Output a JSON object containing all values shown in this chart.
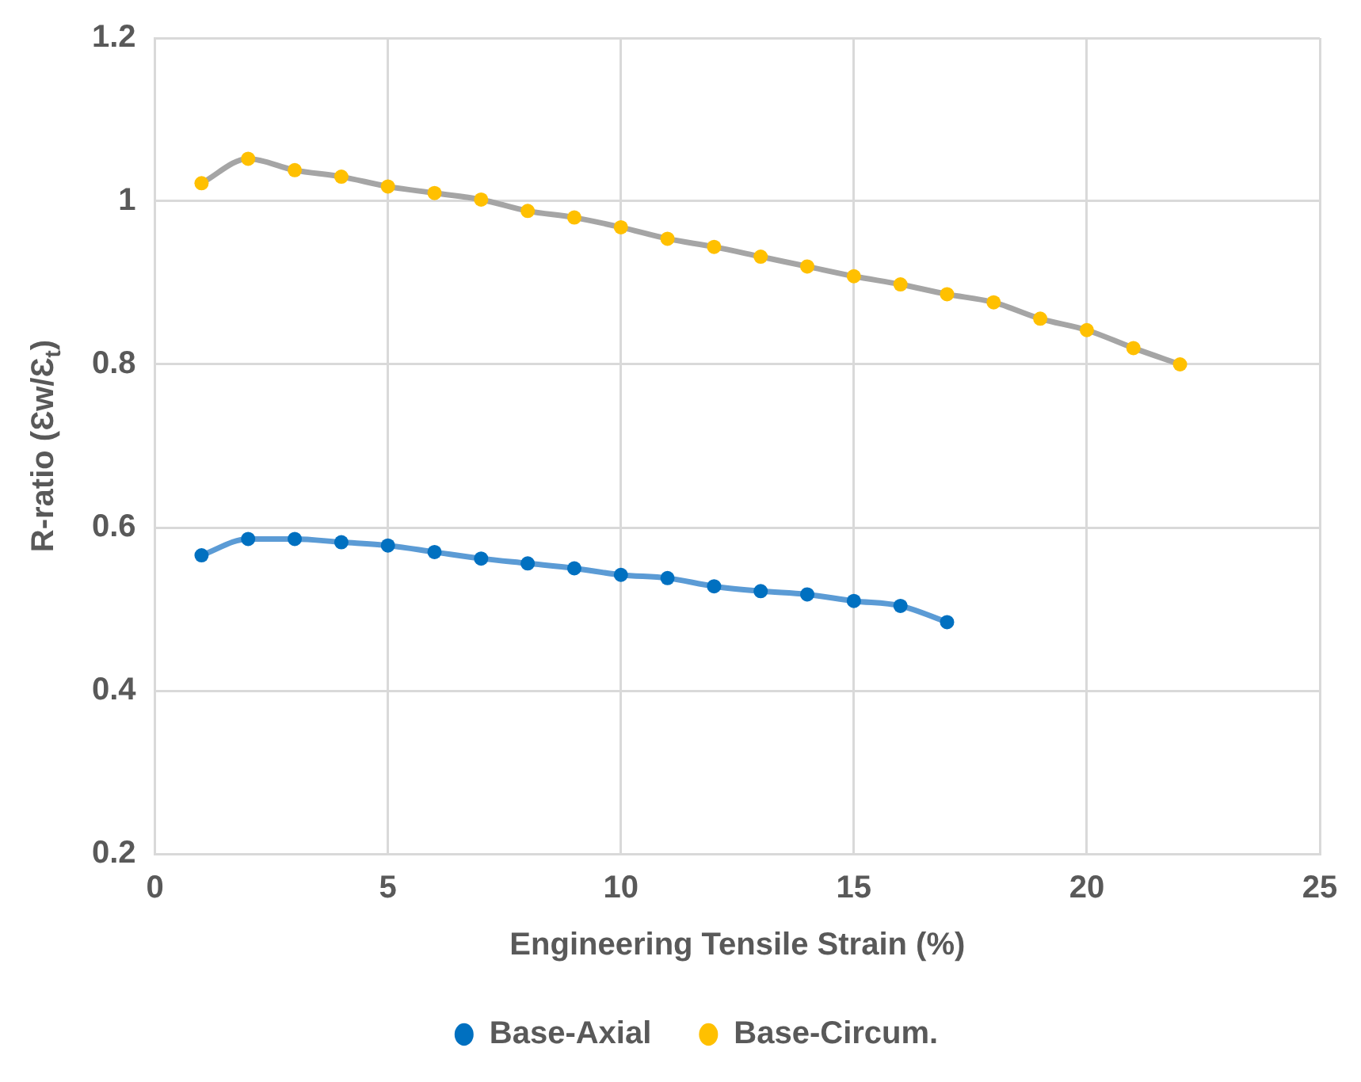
{
  "chart_data": {
    "type": "line",
    "xlabel": "Engineering Tensile Strain (%)",
    "ylabel": "R-ratio (Ɛw/Ɛ$_{t}$)",
    "xlim": [
      0,
      25
    ],
    "xticks": [
      0,
      5,
      10,
      15,
      20,
      25
    ],
    "ylim": [
      0.2,
      1.2
    ],
    "yticks": [
      {
        "value": 0.2,
        "label": "0.2"
      },
      {
        "value": 0.4,
        "label": "0.4"
      },
      {
        "value": 0.6,
        "label": "0.6"
      },
      {
        "value": 0.8,
        "label": "0.8"
      },
      {
        "value": 1,
        "label": "1"
      },
      {
        "value": 1.2,
        "label": "1.2"
      }
    ],
    "grid": true,
    "legend": "bottom",
    "marker": "circle",
    "line_style": "solid",
    "series": [
      {
        "name": "Base-Axial",
        "color": "#5b9bd5",
        "x": [
          1,
          2,
          3,
          4,
          5,
          6,
          7,
          8,
          9,
          10,
          11,
          12,
          13,
          14,
          15,
          16,
          17
        ],
        "values": [
          0.566,
          0.586,
          0.586,
          0.582,
          0.578,
          0.57,
          0.562,
          0.556,
          0.55,
          0.542,
          0.538,
          0.528,
          0.522,
          0.518,
          0.51,
          0.504,
          0.484
        ]
      },
      {
        "name": "Base-Circum.",
        "color": "#a5a5a5",
        "x": [
          1,
          2,
          3,
          4,
          5,
          6,
          7,
          8,
          9,
          10,
          11,
          12,
          13,
          14,
          15,
          16,
          17,
          18,
          19,
          20,
          21,
          22
        ],
        "values": [
          1.022,
          1.052,
          1.038,
          1.03,
          1.018,
          1.01,
          1.002,
          0.988,
          0.98,
          0.968,
          0.954,
          0.944,
          0.932,
          0.92,
          0.908,
          0.898,
          0.886,
          0.876,
          0.856,
          0.842,
          0.82,
          0.8
        ]
      }
    ]
  }
}
